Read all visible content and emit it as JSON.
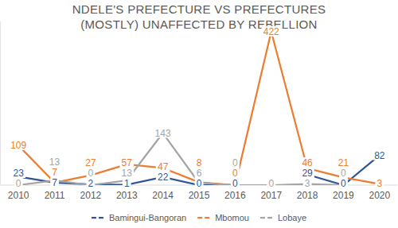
{
  "chart_data": {
    "type": "line",
    "title": "NDELE'S PREFECTURE VS PREFECTURES (MOSTLY) UNAFFECTED BY REBELLION",
    "categories": [
      "2010",
      "2011",
      "2012",
      "2013",
      "2014",
      "2015",
      "2016",
      "2017",
      "2018",
      "2019",
      "2020"
    ],
    "series": [
      {
        "name": "Bamingui-Bangoran",
        "color": "#2f5597",
        "values": [
          23,
          7,
          2,
          1,
          22,
          0,
          0,
          null,
          29,
          0,
          82
        ]
      },
      {
        "name": "Mbomou",
        "color": "#ed7d31",
        "values": [
          109,
          7,
          27,
          57,
          47,
          8,
          0,
          422,
          46,
          21,
          3
        ]
      },
      {
        "name": "Lobaye",
        "color": "#a5a5a5",
        "values": [
          0,
          13,
          0,
          13,
          143,
          6,
          0,
          0,
          3,
          0,
          null
        ]
      }
    ],
    "ylim": [
      0,
      450
    ],
    "tick_labels": "x",
    "grid": false,
    "legend": "bottom",
    "data_labels": true
  }
}
